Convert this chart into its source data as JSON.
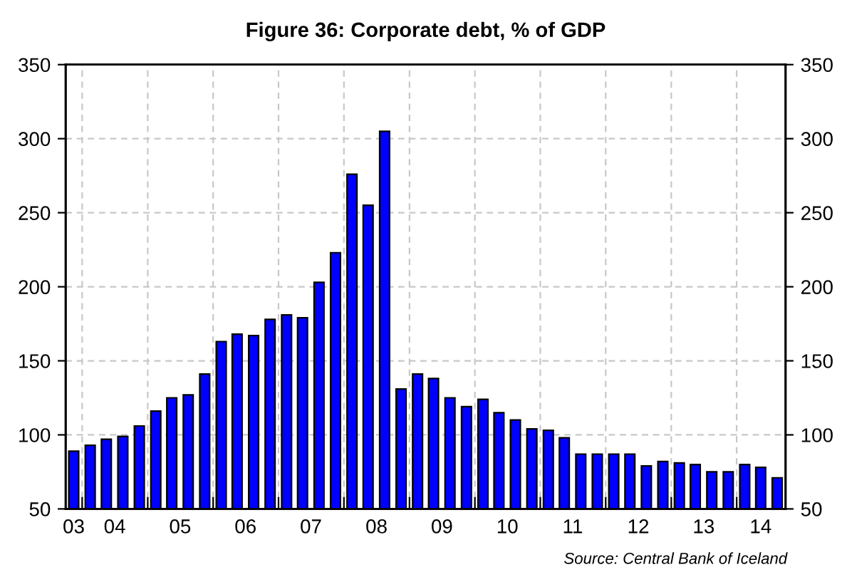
{
  "chart_data": {
    "type": "bar",
    "title": "Figure 36: Corporate debt, % of GDP",
    "x": [
      "2003-11-15",
      "2004-02-15",
      "2004-05-15",
      "2004-08-15",
      "2004-11-15",
      "2005-02-15",
      "2005-05-15",
      "2005-08-15",
      "2005-11-15",
      "2006-02-15",
      "2006-05-15",
      "2006-08-15",
      "2006-11-15",
      "2007-02-15",
      "2007-05-15",
      "2007-08-15",
      "2007-11-15",
      "2008-02-15",
      "2008-05-15",
      "2008-08-15",
      "2008-11-15",
      "2009-02-15",
      "2009-05-15",
      "2009-08-15",
      "2009-11-15",
      "2010-02-15",
      "2010-05-15",
      "2010-08-15",
      "2010-11-15",
      "2011-02-15",
      "2011-05-15",
      "2011-08-15",
      "2011-11-15",
      "2012-02-15",
      "2012-05-15",
      "2012-08-15",
      "2012-11-15",
      "2013-02-15",
      "2013-05-15",
      "2013-08-15",
      "2013-11-15",
      "2014-02-15",
      "2014-05-15",
      "2014-08-15"
    ],
    "series": [
      {
        "color": "#0000ff",
        "values": [
          89,
          93,
          97,
          99,
          106,
          116,
          125,
          127,
          141,
          163,
          168,
          167,
          178,
          181,
          179,
          203,
          223,
          276,
          255,
          305,
          131,
          141,
          138,
          125,
          119,
          124,
          115,
          110,
          104,
          103,
          98,
          87,
          87,
          87,
          87,
          79,
          82,
          81,
          80,
          75,
          75,
          80,
          78,
          71
        ]
      }
    ],
    "xlim": [
      "2003-10-01",
      "2014-10-01"
    ],
    "xticks": [
      {
        "value": "2003-11-15",
        "label": "03"
      },
      {
        "value": "2004-07-01",
        "label": "04"
      },
      {
        "value": "2005-07-01",
        "label": "05"
      },
      {
        "value": "2006-07-01",
        "label": "06"
      },
      {
        "value": "2007-07-01",
        "label": "07"
      },
      {
        "value": "2008-07-01",
        "label": "08"
      },
      {
        "value": "2009-07-01",
        "label": "09"
      },
      {
        "value": "2010-07-01",
        "label": "10"
      },
      {
        "value": "2011-07-01",
        "label": "11"
      },
      {
        "value": "2012-07-01",
        "label": "12"
      },
      {
        "value": "2013-07-01",
        "label": "13"
      },
      {
        "value": "2014-05-15",
        "label": "14"
      },
      {
        "value": "2004-01-01",
        "label": null
      },
      {
        "value": "2005-01-01",
        "label": null
      },
      {
        "value": "2006-01-01",
        "label": null
      },
      {
        "value": "2007-01-01",
        "label": null
      },
      {
        "value": "2008-01-01",
        "label": null
      },
      {
        "value": "2009-01-01",
        "label": null
      },
      {
        "value": "2010-01-01",
        "label": null
      },
      {
        "value": "2011-01-01",
        "label": null
      },
      {
        "value": "2012-01-01",
        "label": null
      },
      {
        "value": "2013-01-01",
        "label": null
      },
      {
        "value": "2014-01-01",
        "label": null
      }
    ],
    "ylim": [
      50,
      350
    ],
    "yticks": [
      50,
      100,
      150,
      200,
      250,
      300,
      350
    ],
    "y2lim": [
      50,
      350
    ],
    "y2ticks": [
      50,
      100,
      150,
      200,
      250,
      300,
      350
    ],
    "grid": true,
    "legend": false,
    "annotations": [
      "Source: Central Bank of Iceland"
    ]
  }
}
